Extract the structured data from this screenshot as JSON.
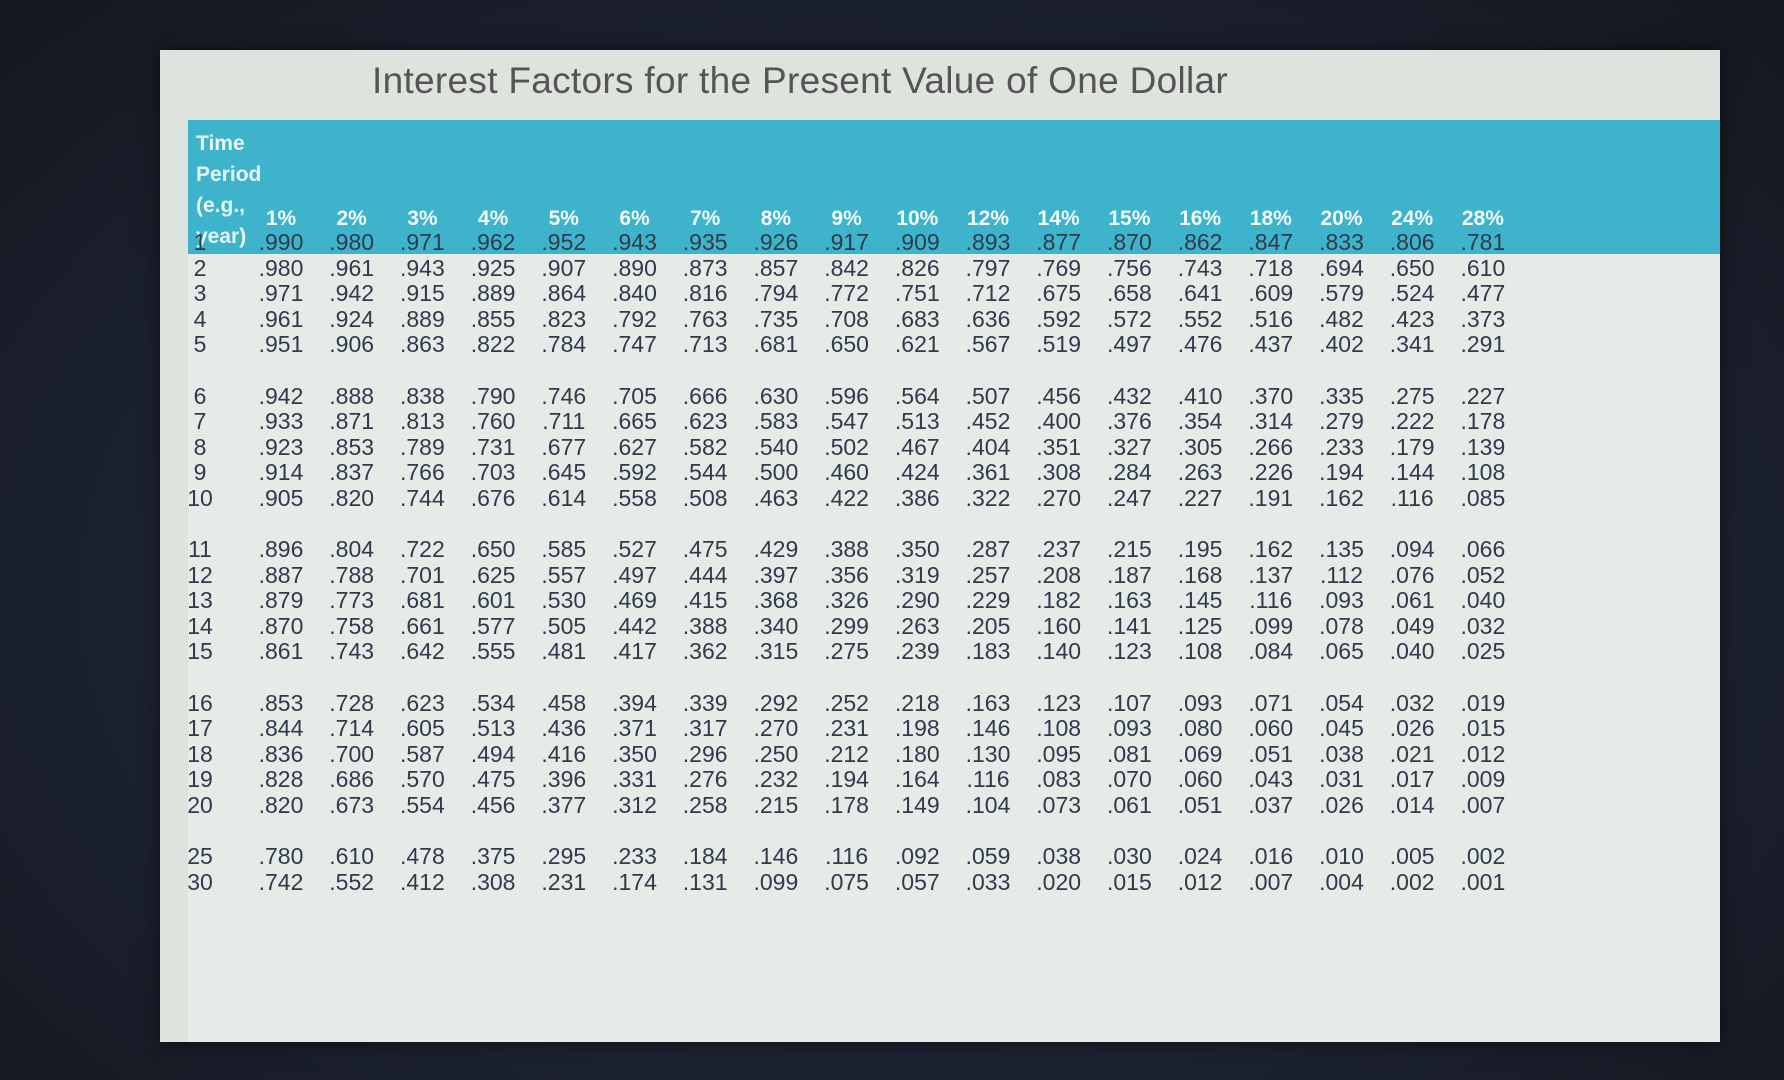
{
  "title": "Interest Factors for the Present Value of One Dollar",
  "time_period_label": [
    "Time",
    "Period",
    "(e.g.,",
    "year)"
  ],
  "rates": [
    "1%",
    "2%",
    "3%",
    "4%",
    "5%",
    "6%",
    "7%",
    "8%",
    "9%",
    "10%",
    "12%",
    "14%",
    "15%",
    "16%",
    "18%",
    "20%",
    "24%",
    "28%"
  ],
  "rows": [
    {
      "period": "1",
      "values": [
        ".990",
        ".980",
        ".971",
        ".962",
        ".952",
        ".943",
        ".935",
        ".926",
        ".917",
        ".909",
        ".893",
        ".877",
        ".870",
        ".862",
        ".847",
        ".833",
        ".806",
        ".781"
      ]
    },
    {
      "period": "2",
      "values": [
        ".980",
        ".961",
        ".943",
        ".925",
        ".907",
        ".890",
        ".873",
        ".857",
        ".842",
        ".826",
        ".797",
        ".769",
        ".756",
        ".743",
        ".718",
        ".694",
        ".650",
        ".610"
      ]
    },
    {
      "period": "3",
      "values": [
        ".971",
        ".942",
        ".915",
        ".889",
        ".864",
        ".840",
        ".816",
        ".794",
        ".772",
        ".751",
        ".712",
        ".675",
        ".658",
        ".641",
        ".609",
        ".579",
        ".524",
        ".477"
      ]
    },
    {
      "period": "4",
      "values": [
        ".961",
        ".924",
        ".889",
        ".855",
        ".823",
        ".792",
        ".763",
        ".735",
        ".708",
        ".683",
        ".636",
        ".592",
        ".572",
        ".552",
        ".516",
        ".482",
        ".423",
        ".373"
      ]
    },
    {
      "period": "5",
      "values": [
        ".951",
        ".906",
        ".863",
        ".822",
        ".784",
        ".747",
        ".713",
        ".681",
        ".650",
        ".621",
        ".567",
        ".519",
        ".497",
        ".476",
        ".437",
        ".402",
        ".341",
        ".291"
      ]
    },
    {
      "period": "6",
      "values": [
        ".942",
        ".888",
        ".838",
        ".790",
        ".746",
        ".705",
        ".666",
        ".630",
        ".596",
        ".564",
        ".507",
        ".456",
        ".432",
        ".410",
        ".370",
        ".335",
        ".275",
        ".227"
      ]
    },
    {
      "period": "7",
      "values": [
        ".933",
        ".871",
        ".813",
        ".760",
        ".711",
        ".665",
        ".623",
        ".583",
        ".547",
        ".513",
        ".452",
        ".400",
        ".376",
        ".354",
        ".314",
        ".279",
        ".222",
        ".178"
      ]
    },
    {
      "period": "8",
      "values": [
        ".923",
        ".853",
        ".789",
        ".731",
        ".677",
        ".627",
        ".582",
        ".540",
        ".502",
        ".467",
        ".404",
        ".351",
        ".327",
        ".305",
        ".266",
        ".233",
        ".179",
        ".139"
      ]
    },
    {
      "period": "9",
      "values": [
        ".914",
        ".837",
        ".766",
        ".703",
        ".645",
        ".592",
        ".544",
        ".500",
        ".460",
        ".424",
        ".361",
        ".308",
        ".284",
        ".263",
        ".226",
        ".194",
        ".144",
        ".108"
      ]
    },
    {
      "period": "10",
      "values": [
        ".905",
        ".820",
        ".744",
        ".676",
        ".614",
        ".558",
        ".508",
        ".463",
        ".422",
        ".386",
        ".322",
        ".270",
        ".247",
        ".227",
        ".191",
        ".162",
        ".116",
        ".085"
      ]
    },
    {
      "period": "11",
      "values": [
        ".896",
        ".804",
        ".722",
        ".650",
        ".585",
        ".527",
        ".475",
        ".429",
        ".388",
        ".350",
        ".287",
        ".237",
        ".215",
        ".195",
        ".162",
        ".135",
        ".094",
        ".066"
      ]
    },
    {
      "period": "12",
      "values": [
        ".887",
        ".788",
        ".701",
        ".625",
        ".557",
        ".497",
        ".444",
        ".397",
        ".356",
        ".319",
        ".257",
        ".208",
        ".187",
        ".168",
        ".137",
        ".112",
        ".076",
        ".052"
      ]
    },
    {
      "period": "13",
      "values": [
        ".879",
        ".773",
        ".681",
        ".601",
        ".530",
        ".469",
        ".415",
        ".368",
        ".326",
        ".290",
        ".229",
        ".182",
        ".163",
        ".145",
        ".116",
        ".093",
        ".061",
        ".040"
      ]
    },
    {
      "period": "14",
      "values": [
        ".870",
        ".758",
        ".661",
        ".577",
        ".505",
        ".442",
        ".388",
        ".340",
        ".299",
        ".263",
        ".205",
        ".160",
        ".141",
        ".125",
        ".099",
        ".078",
        ".049",
        ".032"
      ]
    },
    {
      "period": "15",
      "values": [
        ".861",
        ".743",
        ".642",
        ".555",
        ".481",
        ".417",
        ".362",
        ".315",
        ".275",
        ".239",
        ".183",
        ".140",
        ".123",
        ".108",
        ".084",
        ".065",
        ".040",
        ".025"
      ]
    },
    {
      "period": "16",
      "values": [
        ".853",
        ".728",
        ".623",
        ".534",
        ".458",
        ".394",
        ".339",
        ".292",
        ".252",
        ".218",
        ".163",
        ".123",
        ".107",
        ".093",
        ".071",
        ".054",
        ".032",
        ".019"
      ]
    },
    {
      "period": "17",
      "values": [
        ".844",
        ".714",
        ".605",
        ".513",
        ".436",
        ".371",
        ".317",
        ".270",
        ".231",
        ".198",
        ".146",
        ".108",
        ".093",
        ".080",
        ".060",
        ".045",
        ".026",
        ".015"
      ]
    },
    {
      "period": "18",
      "values": [
        ".836",
        ".700",
        ".587",
        ".494",
        ".416",
        ".350",
        ".296",
        ".250",
        ".212",
        ".180",
        ".130",
        ".095",
        ".081",
        ".069",
        ".051",
        ".038",
        ".021",
        ".012"
      ]
    },
    {
      "period": "19",
      "values": [
        ".828",
        ".686",
        ".570",
        ".475",
        ".396",
        ".331",
        ".276",
        ".232",
        ".194",
        ".164",
        ".116",
        ".083",
        ".070",
        ".060",
        ".043",
        ".031",
        ".017",
        ".009"
      ]
    },
    {
      "period": "20",
      "values": [
        ".820",
        ".673",
        ".554",
        ".456",
        ".377",
        ".312",
        ".258",
        ".215",
        ".178",
        ".149",
        ".104",
        ".073",
        ".061",
        ".051",
        ".037",
        ".026",
        ".014",
        ".007"
      ]
    },
    {
      "period": "25",
      "values": [
        ".780",
        ".610",
        ".478",
        ".375",
        ".295",
        ".233",
        ".184",
        ".146",
        ".116",
        ".092",
        ".059",
        ".038",
        ".030",
        ".024",
        ".016",
        ".010",
        ".005",
        ".002"
      ]
    },
    {
      "period": "30",
      "values": [
        ".742",
        ".552",
        ".412",
        ".308",
        ".231",
        ".174",
        ".131",
        ".099",
        ".075",
        ".057",
        ".033",
        ".020",
        ".015",
        ".012",
        ".007",
        ".004",
        ".002",
        ".001"
      ]
    }
  ]
}
